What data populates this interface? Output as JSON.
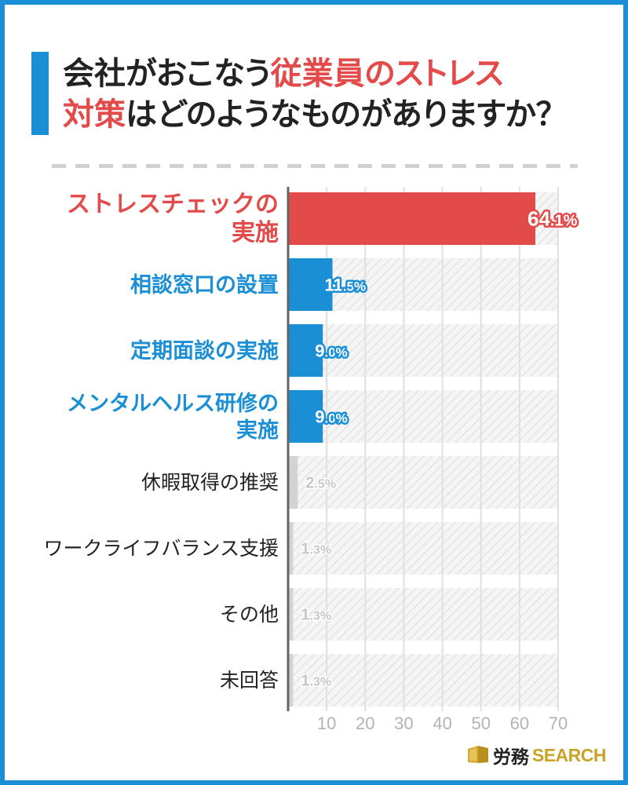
{
  "colors": {
    "frame": "#1a8fd6",
    "accent_red": "#e34b4b",
    "accent_blue": "#1a8fd6",
    "bar_muted": "#d3d3d3",
    "text": "#222222",
    "value_muted": "#c6c6c6",
    "tick_text": "#b3b3b3",
    "logo_gold": "#c9a227"
  },
  "header": {
    "title_line1_plain": "会社がおこなう",
    "title_line1_accent": "従業員のストレス",
    "title_line2_accent": "対策",
    "title_line2_plain": "はどのようなものがありますか？"
  },
  "chart_data": {
    "type": "bar",
    "orientation": "horizontal",
    "categories": [
      "ストレスチェックの\n実施",
      "相談窓口の設置",
      "定期面談の実施",
      "メンタルヘルス研修の\n実施",
      "休暇取得の推奨",
      "ワークライフバランス支援",
      "その他",
      "未回答"
    ],
    "values": [
      64.1,
      11.5,
      9.0,
      9.0,
      2.5,
      1.3,
      1.3,
      1.3
    ],
    "unit": "%",
    "xlim": [
      0,
      70
    ],
    "ticks": [
      10,
      20,
      30,
      40,
      50,
      60,
      70
    ],
    "grid": true,
    "bar_colors": [
      "#e34b4b",
      "#1a8fd6",
      "#1a8fd6",
      "#1a8fd6",
      "#d3d3d3",
      "#d3d3d3",
      "#d3d3d3",
      "#d3d3d3"
    ]
  },
  "logo": {
    "icon": "book-icon",
    "text_main": "労務",
    "text_accent": "SEARCH"
  }
}
